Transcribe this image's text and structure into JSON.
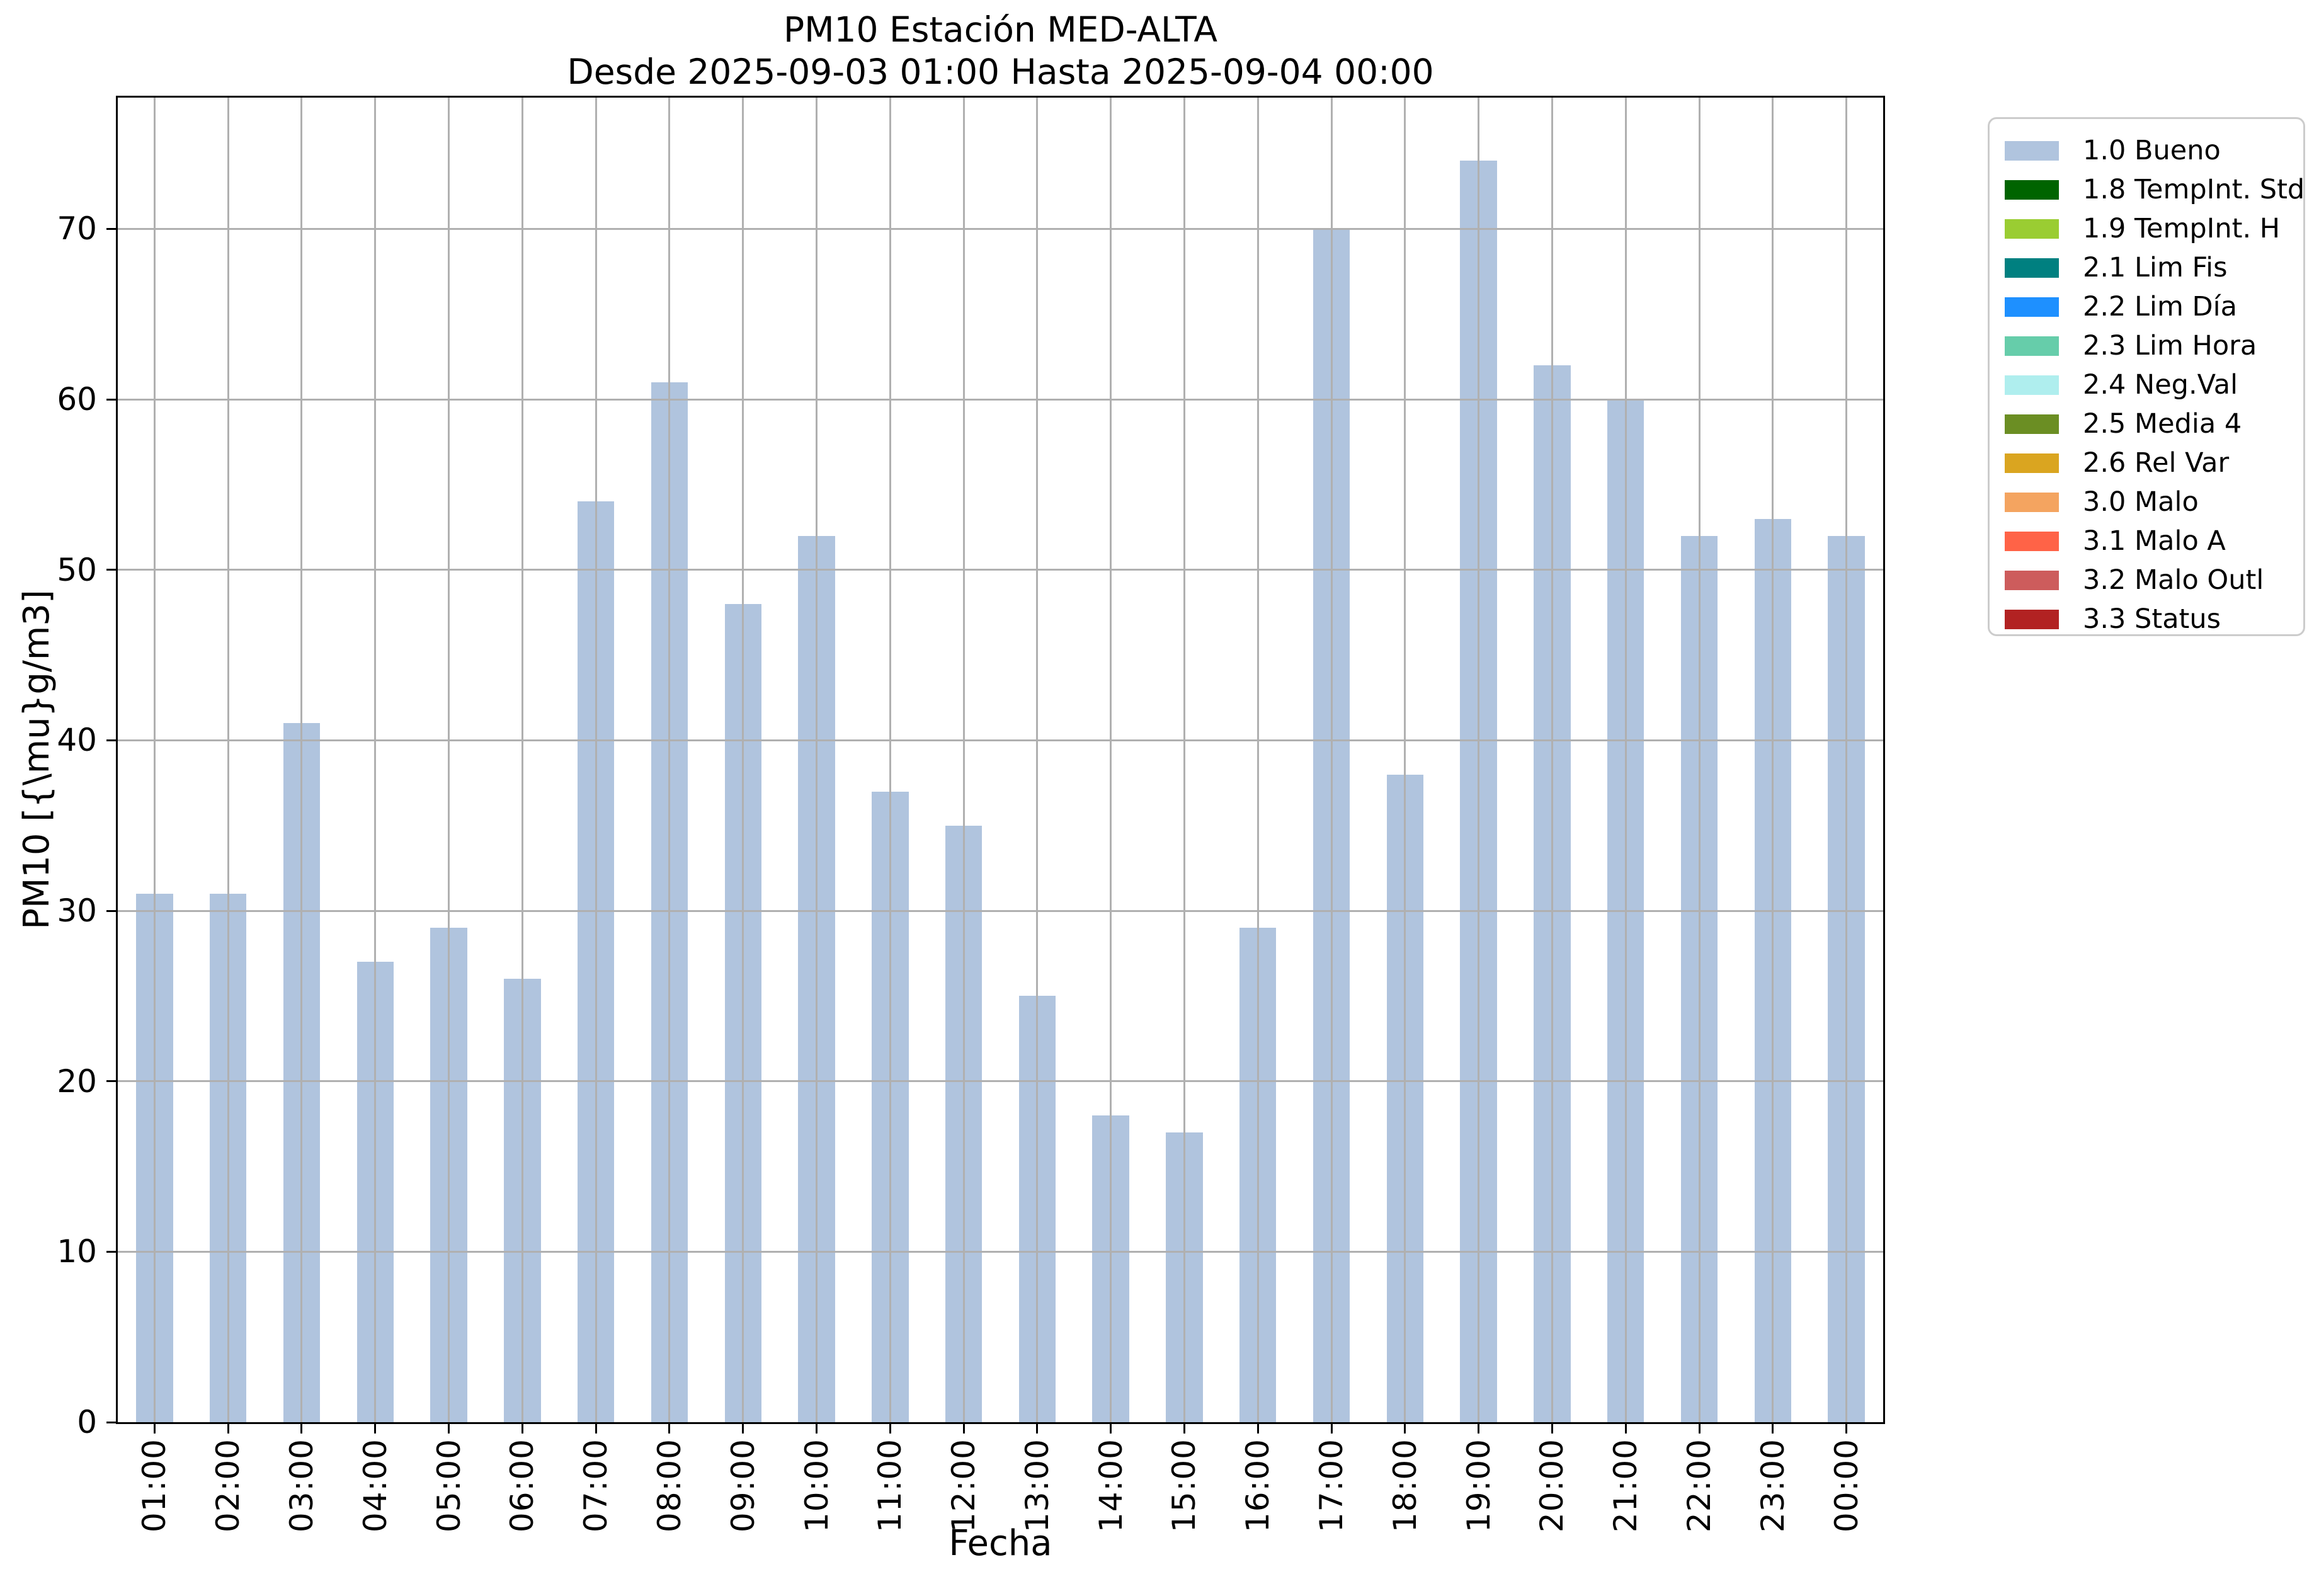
{
  "title": {
    "line1": "PM10 Estación MED-ALTA",
    "line2": "Desde 2025-09-03 01:00 Hasta 2025-09-04 00:00"
  },
  "axes": {
    "xlabel": "Fecha",
    "ylabel": "PM10 [{\\mu}g/m3]"
  },
  "chart_data": {
    "type": "bar",
    "title": "PM10 Estación MED-ALTA",
    "subtitle": "Desde 2025-09-03 01:00 Hasta 2025-09-04 00:00",
    "xlabel": "Fecha",
    "ylabel": "PM10 [{\\mu}g/m3]",
    "categories": [
      "01:00",
      "02:00",
      "03:00",
      "04:00",
      "05:00",
      "06:00",
      "07:00",
      "08:00",
      "09:00",
      "10:00",
      "11:00",
      "12:00",
      "13:00",
      "14:00",
      "15:00",
      "16:00",
      "17:00",
      "18:00",
      "19:00",
      "20:00",
      "21:00",
      "22:00",
      "23:00",
      "00:00"
    ],
    "values": [
      31,
      31,
      41,
      27,
      29,
      26,
      54,
      61,
      48,
      52,
      37,
      35,
      25,
      18,
      17,
      29,
      70,
      38,
      74,
      62,
      60,
      52,
      53,
      52
    ],
    "series_name": "1.0 Bueno",
    "bar_color": "#b0c4de",
    "bar_width_fraction": 0.5,
    "grid": true,
    "grid_color": "#b0b0b0",
    "ylim": [
      0,
      77.7
    ],
    "yticks": [
      0,
      10,
      20,
      30,
      40,
      50,
      60,
      70
    ],
    "xtick_rotation": 90,
    "legend_position": "outside-upper-right"
  },
  "legend": {
    "items": [
      {
        "label": "1.0 Bueno",
        "color": "#b0c4de"
      },
      {
        "label": "1.8 TempInt. Std",
        "color": "#006400"
      },
      {
        "label": "1.9 TempInt. H",
        "color": "#9acd32"
      },
      {
        "label": "2.1 Lim Fis",
        "color": "#008080"
      },
      {
        "label": "2.2 Lim Día",
        "color": "#1e90ff"
      },
      {
        "label": "2.3 Lim Hora",
        "color": "#66cdaa"
      },
      {
        "label": "2.4 Neg.Val",
        "color": "#afeeee"
      },
      {
        "label": "2.5 Media 4",
        "color": "#6b8e23"
      },
      {
        "label": "2.6 Rel Var",
        "color": "#daa520"
      },
      {
        "label": "3.0 Malo",
        "color": "#f4a460"
      },
      {
        "label": "3.1 Malo A",
        "color": "#ff6347"
      },
      {
        "label": "3.2 Malo Outl",
        "color": "#cd5c5c"
      },
      {
        "label": "3.3 Status",
        "color": "#b22222"
      }
    ]
  }
}
